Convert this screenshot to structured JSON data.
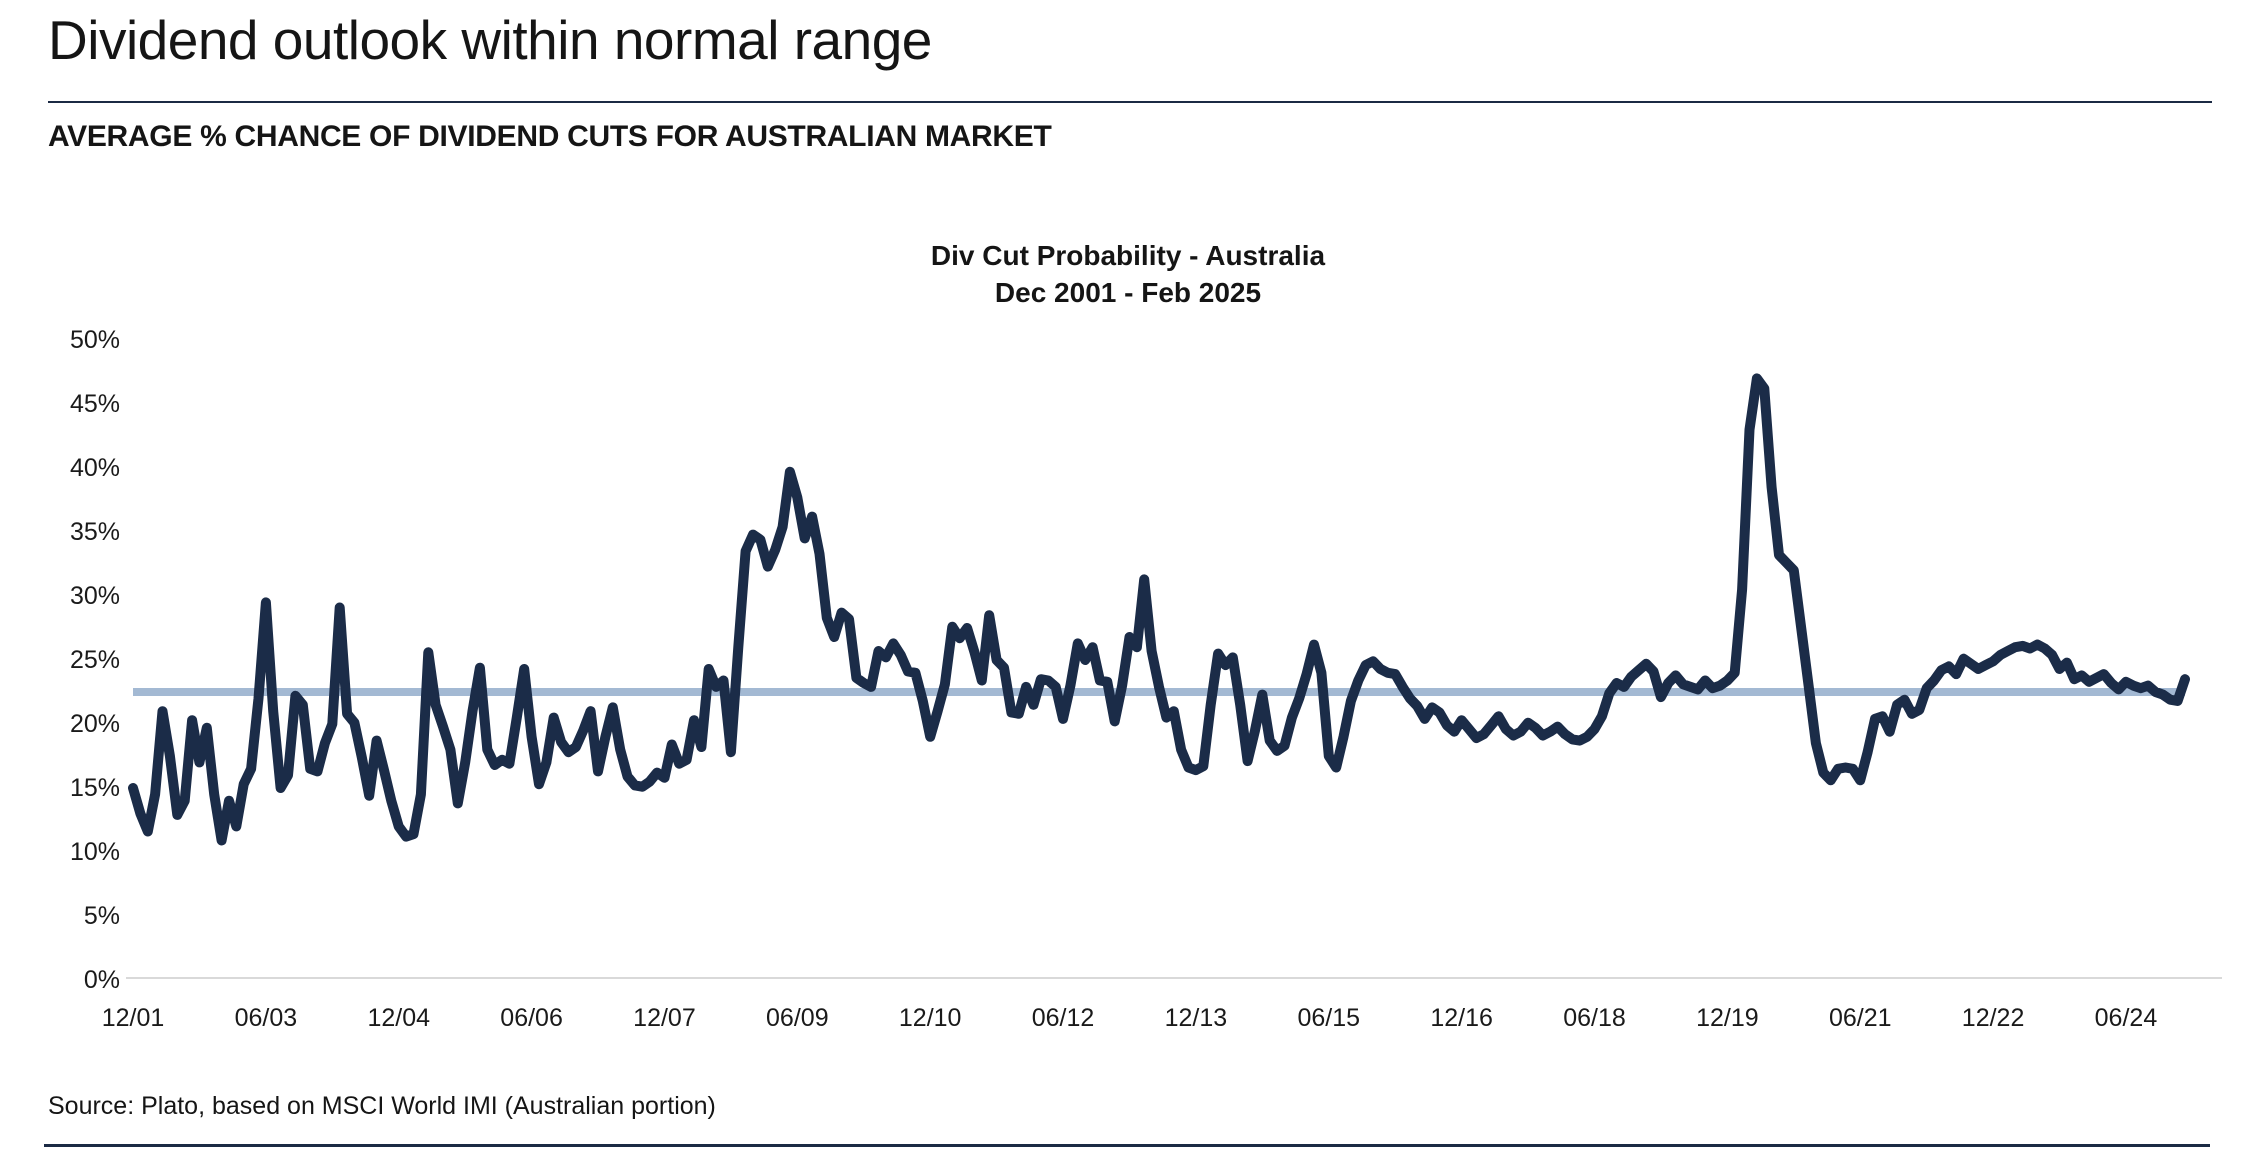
{
  "page": {
    "title": "Dividend outlook within normal range",
    "subtitle": "AVERAGE % CHANCE OF DIVIDEND CUTS FOR AUSTRALIAN MARKET",
    "source": "Source: Plato, based on MSCI World IMI (Australian portion)"
  },
  "chart_data": {
    "type": "line",
    "title": "Div Cut Probability - Australia",
    "subtitle": "Dec 2001 - Feb 2025",
    "x_start": "2001-12",
    "x_end": "2025-02",
    "x_frequency": "monthly",
    "x_tick_labels": [
      "12/01",
      "06/03",
      "12/04",
      "06/06",
      "12/07",
      "06/09",
      "12/10",
      "06/12",
      "12/13",
      "06/15",
      "12/16",
      "06/18",
      "12/19",
      "06/21",
      "12/22",
      "06/24"
    ],
    "x_ticks_every_n_points": 18,
    "y_tick_labels": [
      "0%",
      "5%",
      "10%",
      "15%",
      "20%",
      "25%",
      "30%",
      "35%",
      "40%",
      "45%",
      "50%"
    ],
    "ylim": [
      0,
      50
    ],
    "grid": false,
    "legend_position": "none",
    "line_color": "#1b2c48",
    "average_line": {
      "value": 22.5,
      "color": "#a3b9d3"
    },
    "axis_line_color": "#d9d9d9",
    "series": [
      {
        "name": "Div Cut Probability - Australia",
        "values": [
          15.0,
          13.0,
          11.6,
          14.5,
          21.0,
          17.5,
          12.9,
          14.0,
          20.3,
          17.0,
          19.7,
          14.5,
          10.9,
          14.0,
          12.0,
          15.3,
          16.5,
          22.0,
          29.5,
          21.0,
          15.0,
          16.0,
          22.2,
          21.5,
          16.5,
          16.3,
          18.5,
          20.0,
          29.1,
          20.8,
          20.1,
          17.4,
          14.4,
          18.7,
          16.4,
          14.0,
          12.0,
          11.2,
          11.4,
          14.5,
          25.6,
          21.5,
          19.8,
          18.0,
          13.8,
          17.0,
          21.0,
          24.4,
          18.0,
          16.8,
          17.2,
          16.9,
          20.5,
          24.3,
          19.0,
          15.3,
          17.0,
          20.5,
          18.6,
          17.8,
          18.2,
          19.5,
          21.0,
          16.3,
          19.0,
          21.3,
          18.0,
          15.9,
          15.2,
          15.1,
          15.5,
          16.2,
          15.8,
          18.4,
          16.9,
          17.2,
          20.3,
          18.2,
          24.3,
          22.9,
          23.4,
          17.8,
          26.0,
          33.5,
          34.8,
          34.4,
          32.3,
          33.6,
          35.4,
          39.7,
          37.7,
          34.5,
          36.2,
          33.3,
          28.3,
          26.8,
          28.7,
          28.2,
          23.6,
          23.2,
          22.9,
          25.7,
          25.2,
          26.3,
          25.4,
          24.1,
          24.0,
          21.8,
          19.0,
          21.0,
          23.1,
          27.6,
          26.7,
          27.5,
          25.6,
          23.4,
          28.5,
          25.0,
          24.4,
          20.9,
          20.8,
          22.9,
          21.5,
          23.5,
          23.4,
          22.9,
          20.4,
          23.0,
          26.3,
          25.0,
          26.0,
          23.4,
          23.3,
          20.2,
          23.0,
          26.8,
          26.0,
          31.3,
          25.7,
          22.9,
          20.5,
          21.0,
          18.0,
          16.6,
          16.4,
          16.7,
          21.5,
          25.5,
          24.6,
          25.2,
          21.5,
          17.1,
          19.5,
          22.3,
          18.7,
          17.9,
          18.3,
          20.5,
          22.0,
          23.9,
          26.2,
          24.0,
          17.5,
          16.6,
          19.0,
          21.8,
          23.4,
          24.6,
          24.9,
          24.3,
          24.0,
          23.9,
          22.9,
          22.0,
          21.4,
          20.4,
          21.3,
          20.9,
          19.9,
          19.4,
          20.3,
          19.6,
          18.9,
          19.2,
          19.9,
          20.6,
          19.6,
          19.1,
          19.4,
          20.1,
          19.7,
          19.1,
          19.4,
          19.8,
          19.2,
          18.8,
          18.7,
          19.0,
          19.6,
          20.6,
          22.4,
          23.2,
          22.9,
          23.7,
          24.2,
          24.7,
          24.1,
          22.1,
          23.2,
          23.8,
          23.1,
          22.9,
          22.7,
          23.4,
          22.8,
          23.0,
          23.4,
          24.0,
          30.5,
          43.0,
          47.0,
          46.2,
          38.5,
          33.2,
          32.6,
          32.0,
          27.5,
          23.0,
          18.5,
          16.2,
          15.6,
          16.5,
          16.6,
          16.5,
          15.6,
          17.8,
          20.4,
          20.6,
          19.4,
          21.5,
          21.9,
          20.8,
          21.1,
          22.8,
          23.4,
          24.2,
          24.5,
          23.9,
          25.1,
          24.7,
          24.3,
          24.6,
          24.9,
          25.4,
          25.7,
          26.0,
          26.1,
          25.9,
          26.2,
          25.9,
          25.4,
          24.3,
          24.8,
          23.5,
          23.8,
          23.3,
          23.6,
          23.9,
          23.2,
          22.7,
          23.3,
          23.0,
          22.8,
          23.0,
          22.5,
          22.3,
          21.9,
          21.8,
          23.5
        ]
      }
    ]
  }
}
